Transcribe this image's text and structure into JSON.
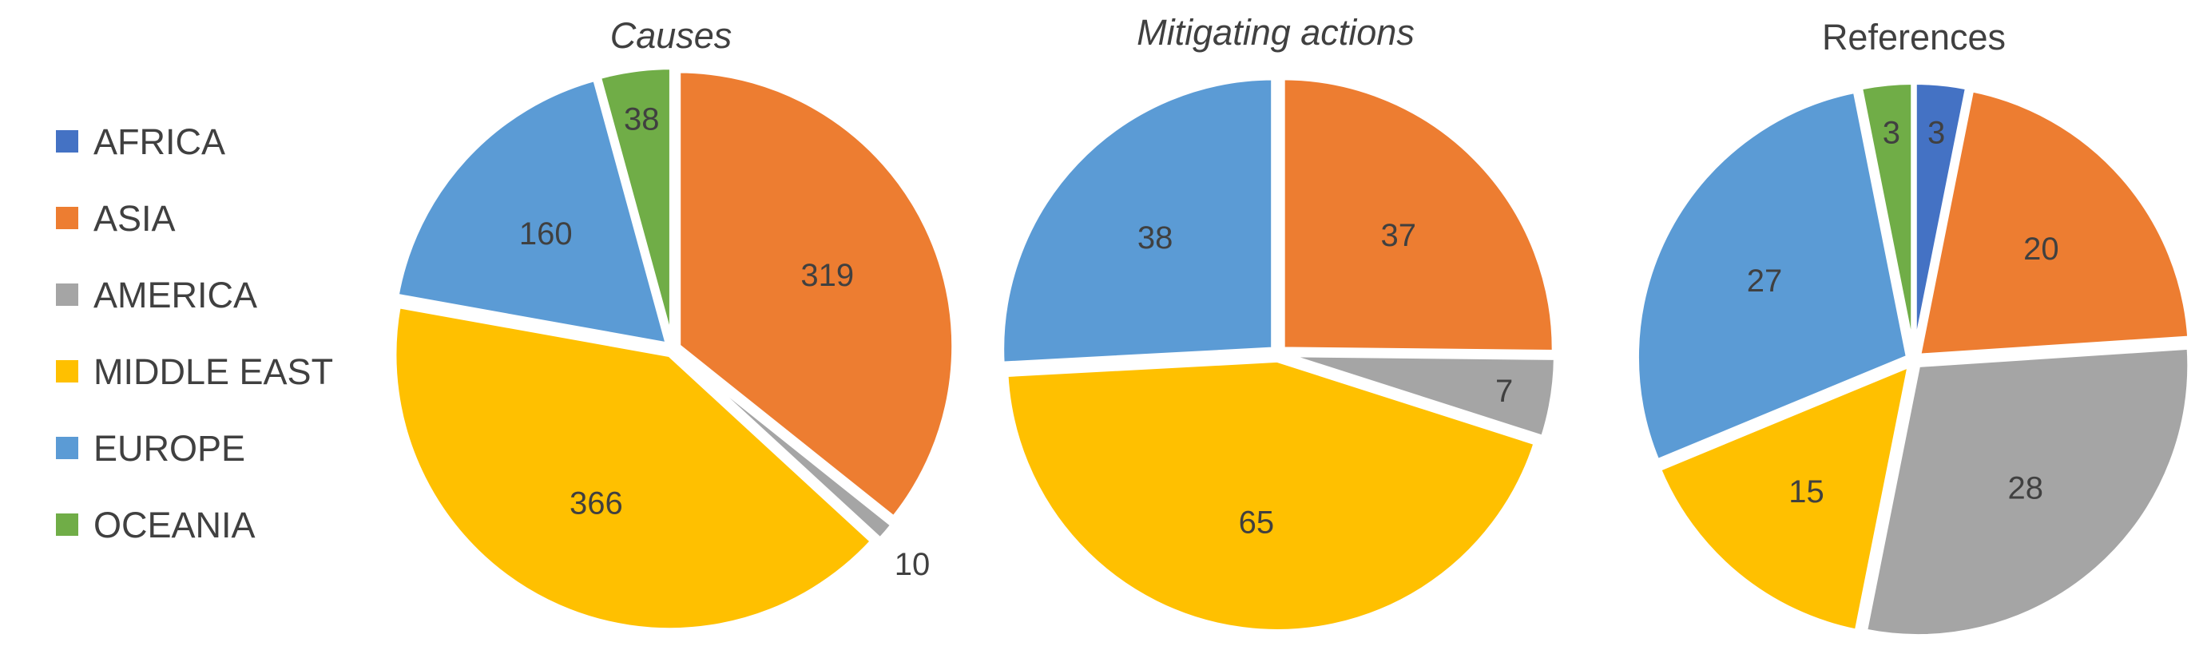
{
  "legend": {
    "placement": "left",
    "items": [
      {
        "label": "AFRICA",
        "color": "#4472C4"
      },
      {
        "label": "ASIA",
        "color": "#ED7D31"
      },
      {
        "label": "AMERICA",
        "color": "#A5A5A5"
      },
      {
        "label": "MIDDLE EAST",
        "color": "#FFC000"
      },
      {
        "label": "EUROPE",
        "color": "#5B9BD5"
      },
      {
        "label": "OCEANIA",
        "color": "#70AD47"
      }
    ]
  },
  "chart_data": [
    {
      "type": "pie",
      "title": "Causes",
      "title_style": "italic",
      "categories": [
        "AFRICA",
        "ASIA",
        "AMERICA",
        "MIDDLE EAST",
        "EUROPE",
        "OCEANIA"
      ],
      "values": [
        0,
        319,
        10,
        366,
        160,
        38
      ],
      "labels": [
        "",
        "319",
        "10",
        "366",
        "160",
        "38"
      ]
    },
    {
      "type": "pie",
      "title": "Mitigating actions",
      "title_style": "italic",
      "categories": [
        "AFRICA",
        "ASIA",
        "AMERICA",
        "MIDDLE EAST",
        "EUROPE",
        "OCEANIA"
      ],
      "values": [
        0,
        37,
        7,
        65,
        38,
        0
      ],
      "labels": [
        "",
        "37",
        "7",
        "65",
        "38",
        ""
      ]
    },
    {
      "type": "pie",
      "title": "References",
      "title_style": "normal",
      "categories": [
        "AFRICA",
        "ASIA",
        "AMERICA",
        "MIDDLE EAST",
        "EUROPE",
        "OCEANIA"
      ],
      "values": [
        3,
        20,
        28,
        15,
        27,
        3
      ],
      "labels": [
        "3",
        "20",
        "28",
        "15",
        "27",
        "3"
      ]
    }
  ]
}
